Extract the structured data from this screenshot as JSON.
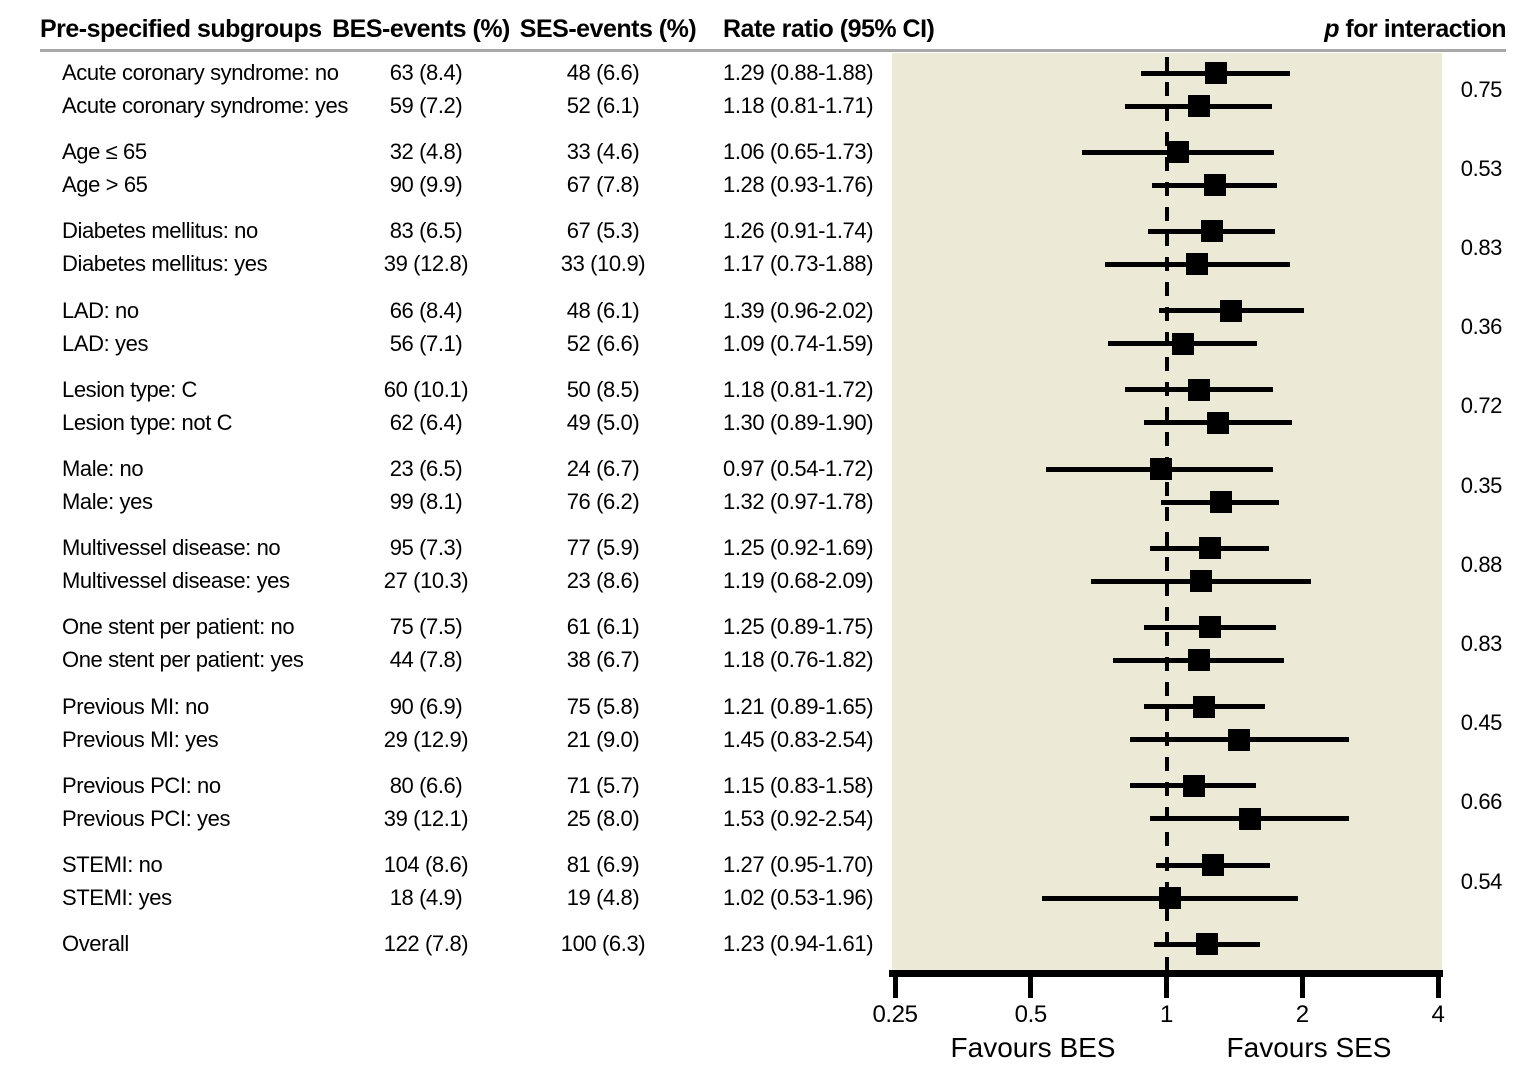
{
  "header": {
    "subgroups": "Pre-specified subgroups",
    "bes": "BES-events (%)",
    "ses": "SES-events (%)",
    "rate_ratio": "Rate ratio (95% CI)",
    "p_italic": "p",
    "p_rest": " for interaction"
  },
  "axis": {
    "ticks": [
      0.25,
      0.5,
      1,
      2,
      4
    ],
    "tick_labels": [
      "0.25",
      "0.5",
      "1",
      "2",
      "4"
    ],
    "left_label": "Favours BES",
    "right_label": "Favours SES",
    "reference_line": 1,
    "scale": "log"
  },
  "colors": {
    "plot_background": "#ece9d7",
    "marker": "#000000",
    "text": "#000000",
    "header_rule": "#a8a8a8"
  },
  "chart_data": {
    "type": "forest",
    "x_scale": "log2",
    "x_range": [
      0.25,
      4
    ],
    "groups": [
      {
        "p_interaction": "0.75",
        "rows": [
          {
            "label": "Acute coronary syndrome: no",
            "bes": "63 (8.4)",
            "ses": "48 (6.6)",
            "rr_text": "1.29 (0.88-1.88)",
            "rr": 1.29,
            "lo": 0.88,
            "hi": 1.88
          },
          {
            "label": "Acute coronary syndrome: yes",
            "bes": "59 (7.2)",
            "ses": "52 (6.1)",
            "rr_text": "1.18 (0.81-1.71)",
            "rr": 1.18,
            "lo": 0.81,
            "hi": 1.71
          }
        ]
      },
      {
        "p_interaction": "0.53",
        "rows": [
          {
            "label": "Age ≤ 65",
            "bes": "32 (4.8)",
            "ses": "33 (4.6)",
            "rr_text": "1.06 (0.65-1.73)",
            "rr": 1.06,
            "lo": 0.65,
            "hi": 1.73
          },
          {
            "label": "Age > 65",
            "bes": "90 (9.9)",
            "ses": "67 (7.8)",
            "rr_text": "1.28 (0.93-1.76)",
            "rr": 1.28,
            "lo": 0.93,
            "hi": 1.76
          }
        ]
      },
      {
        "p_interaction": "0.83",
        "rows": [
          {
            "label": "Diabetes mellitus: no",
            "bes": "83 (6.5)",
            "ses": "67 (5.3)",
            "rr_text": "1.26 (0.91-1.74)",
            "rr": 1.26,
            "lo": 0.91,
            "hi": 1.74
          },
          {
            "label": "Diabetes mellitus: yes",
            "bes": "39 (12.8)",
            "ses": "33 (10.9)",
            "rr_text": "1.17 (0.73-1.88)",
            "rr": 1.17,
            "lo": 0.73,
            "hi": 1.88
          }
        ]
      },
      {
        "p_interaction": "0.36",
        "rows": [
          {
            "label": "LAD: no",
            "bes": "66 (8.4)",
            "ses": "48 (6.1)",
            "rr_text": "1.39 (0.96-2.02)",
            "rr": 1.39,
            "lo": 0.96,
            "hi": 2.02
          },
          {
            "label": "LAD: yes",
            "bes": "56 (7.1)",
            "ses": "52 (6.6)",
            "rr_text": "1.09 (0.74-1.59)",
            "rr": 1.09,
            "lo": 0.74,
            "hi": 1.59
          }
        ]
      },
      {
        "p_interaction": "0.72",
        "rows": [
          {
            "label": "Lesion type: C",
            "bes": "60 (10.1)",
            "ses": "50 (8.5)",
            "rr_text": "1.18 (0.81-1.72)",
            "rr": 1.18,
            "lo": 0.81,
            "hi": 1.72
          },
          {
            "label": "Lesion type: not C",
            "bes": "62 (6.4)",
            "ses": "49 (5.0)",
            "rr_text": "1.30 (0.89-1.90)",
            "rr": 1.3,
            "lo": 0.89,
            "hi": 1.9
          }
        ]
      },
      {
        "p_interaction": "0.35",
        "rows": [
          {
            "label": "Male: no",
            "bes": "23 (6.5)",
            "ses": "24 (6.7)",
            "rr_text": "0.97 (0.54-1.72)",
            "rr": 0.97,
            "lo": 0.54,
            "hi": 1.72
          },
          {
            "label": "Male: yes",
            "bes": "99 (8.1)",
            "ses": "76 (6.2)",
            "rr_text": "1.32 (0.97-1.78)",
            "rr": 1.32,
            "lo": 0.97,
            "hi": 1.78
          }
        ]
      },
      {
        "p_interaction": "0.88",
        "rows": [
          {
            "label": "Multivessel disease: no",
            "bes": "95 (7.3)",
            "ses": "77 (5.9)",
            "rr_text": "1.25 (0.92-1.69)",
            "rr": 1.25,
            "lo": 0.92,
            "hi": 1.69
          },
          {
            "label": "Multivessel disease: yes",
            "bes": "27 (10.3)",
            "ses": "23 (8.6)",
            "rr_text": "1.19 (0.68-2.09)",
            "rr": 1.19,
            "lo": 0.68,
            "hi": 2.09
          }
        ]
      },
      {
        "p_interaction": "0.83",
        "rows": [
          {
            "label": "One stent per patient: no",
            "bes": "75 (7.5)",
            "ses": "61 (6.1)",
            "rr_text": "1.25 (0.89-1.75)",
            "rr": 1.25,
            "lo": 0.89,
            "hi": 1.75
          },
          {
            "label": "One stent per patient: yes",
            "bes": "44 (7.8)",
            "ses": "38 (6.7)",
            "rr_text": "1.18 (0.76-1.82)",
            "rr": 1.18,
            "lo": 0.76,
            "hi": 1.82
          }
        ]
      },
      {
        "p_interaction": "0.45",
        "rows": [
          {
            "label": "Previous MI: no",
            "bes": "90 (6.9)",
            "ses": "75 (5.8)",
            "rr_text": "1.21 (0.89-1.65)",
            "rr": 1.21,
            "lo": 0.89,
            "hi": 1.65
          },
          {
            "label": "Previous MI: yes",
            "bes": "29 (12.9)",
            "ses": "21 (9.0)",
            "rr_text": "1.45 (0.83-2.54)",
            "rr": 1.45,
            "lo": 0.83,
            "hi": 2.54
          }
        ]
      },
      {
        "p_interaction": "0.66",
        "rows": [
          {
            "label": "Previous PCI: no",
            "bes": "80 (6.6)",
            "ses": "71 (5.7)",
            "rr_text": "1.15 (0.83-1.58)",
            "rr": 1.15,
            "lo": 0.83,
            "hi": 1.58
          },
          {
            "label": "Previous PCI: yes",
            "bes": "39 (12.1)",
            "ses": "25 (8.0)",
            "rr_text": "1.53 (0.92-2.54)",
            "rr": 1.53,
            "lo": 0.92,
            "hi": 2.54
          }
        ]
      },
      {
        "p_interaction": "0.54",
        "rows": [
          {
            "label": "STEMI: no",
            "bes": "104 (8.6)",
            "ses": "81 (6.9)",
            "rr_text": "1.27 (0.95-1.70)",
            "rr": 1.27,
            "lo": 0.95,
            "hi": 1.7
          },
          {
            "label": "STEMI: yes",
            "bes": "18 (4.9)",
            "ses": "19 (4.8)",
            "rr_text": "1.02 (0.53-1.96)",
            "rr": 1.02,
            "lo": 0.53,
            "hi": 1.96
          }
        ]
      }
    ],
    "overall": {
      "label": "Overall",
      "bes": "122 (7.8)",
      "ses": "100 (6.3)",
      "rr_text": "1.23 (0.94-1.61)",
      "rr": 1.23,
      "lo": 0.94,
      "hi": 1.61
    }
  }
}
